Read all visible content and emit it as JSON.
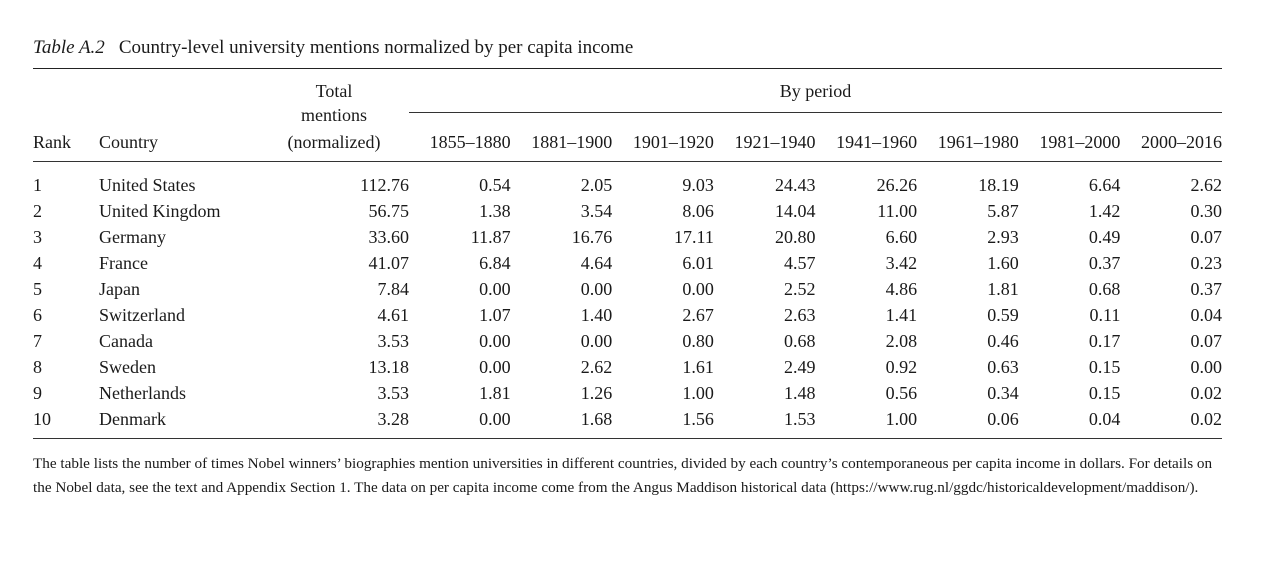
{
  "caption": {
    "label": "Table A.2",
    "title": "Country-level university mentions normalized by per capita income"
  },
  "headers": {
    "rank": "Rank",
    "country": "Country",
    "total_line1": "Total",
    "total_line2": "mentions",
    "total_line3": "(normalized)",
    "by_period": "By period",
    "periods": [
      "1855–1880",
      "1881–1900",
      "1901–1920",
      "1921–1940",
      "1941–1960",
      "1961–1980",
      "1981–2000",
      "2000–2016"
    ]
  },
  "rows": [
    {
      "rank": "1",
      "country": "United States",
      "total": "112.76",
      "periods": [
        "0.54",
        "2.05",
        "9.03",
        "24.43",
        "26.26",
        "18.19",
        "6.64",
        "2.62"
      ]
    },
    {
      "rank": "2",
      "country": "United Kingdom",
      "total": "56.75",
      "periods": [
        "1.38",
        "3.54",
        "8.06",
        "14.04",
        "11.00",
        "5.87",
        "1.42",
        "0.30"
      ]
    },
    {
      "rank": "3",
      "country": "Germany",
      "total": "33.60",
      "periods": [
        "11.87",
        "16.76",
        "17.11",
        "20.80",
        "6.60",
        "2.93",
        "0.49",
        "0.07"
      ]
    },
    {
      "rank": "4",
      "country": "France",
      "total": "41.07",
      "periods": [
        "6.84",
        "4.64",
        "6.01",
        "4.57",
        "3.42",
        "1.60",
        "0.37",
        "0.23"
      ]
    },
    {
      "rank": "5",
      "country": "Japan",
      "total": "7.84",
      "periods": [
        "0.00",
        "0.00",
        "0.00",
        "2.52",
        "4.86",
        "1.81",
        "0.68",
        "0.37"
      ]
    },
    {
      "rank": "6",
      "country": "Switzerland",
      "total": "4.61",
      "periods": [
        "1.07",
        "1.40",
        "2.67",
        "2.63",
        "1.41",
        "0.59",
        "0.11",
        "0.04"
      ]
    },
    {
      "rank": "7",
      "country": "Canada",
      "total": "3.53",
      "periods": [
        "0.00",
        "0.00",
        "0.80",
        "0.68",
        "2.08",
        "0.46",
        "0.17",
        "0.07"
      ]
    },
    {
      "rank": "8",
      "country": "Sweden",
      "total": "13.18",
      "periods": [
        "0.00",
        "2.62",
        "1.61",
        "2.49",
        "0.92",
        "0.63",
        "0.15",
        "0.00"
      ]
    },
    {
      "rank": "9",
      "country": "Netherlands",
      "total": "3.53",
      "periods": [
        "1.81",
        "1.26",
        "1.00",
        "1.48",
        "0.56",
        "0.34",
        "0.15",
        "0.02"
      ]
    },
    {
      "rank": "10",
      "country": "Denmark",
      "total": "3.28",
      "periods": [
        "0.00",
        "1.68",
        "1.56",
        "1.53",
        "1.00",
        "0.06",
        "0.04",
        "0.02"
      ]
    }
  ],
  "note": "The table lists the number of times Nobel winners’ biographies mention universities in different countries, divided by each country’s contemporaneous per capita income in dollars. For details on the Nobel data, see the text and Appendix Section 1. The data on per capita income come from the Angus Maddison historical data (https://www.rug.nl/ggdc/historicaldevelopment/maddison/)."
}
